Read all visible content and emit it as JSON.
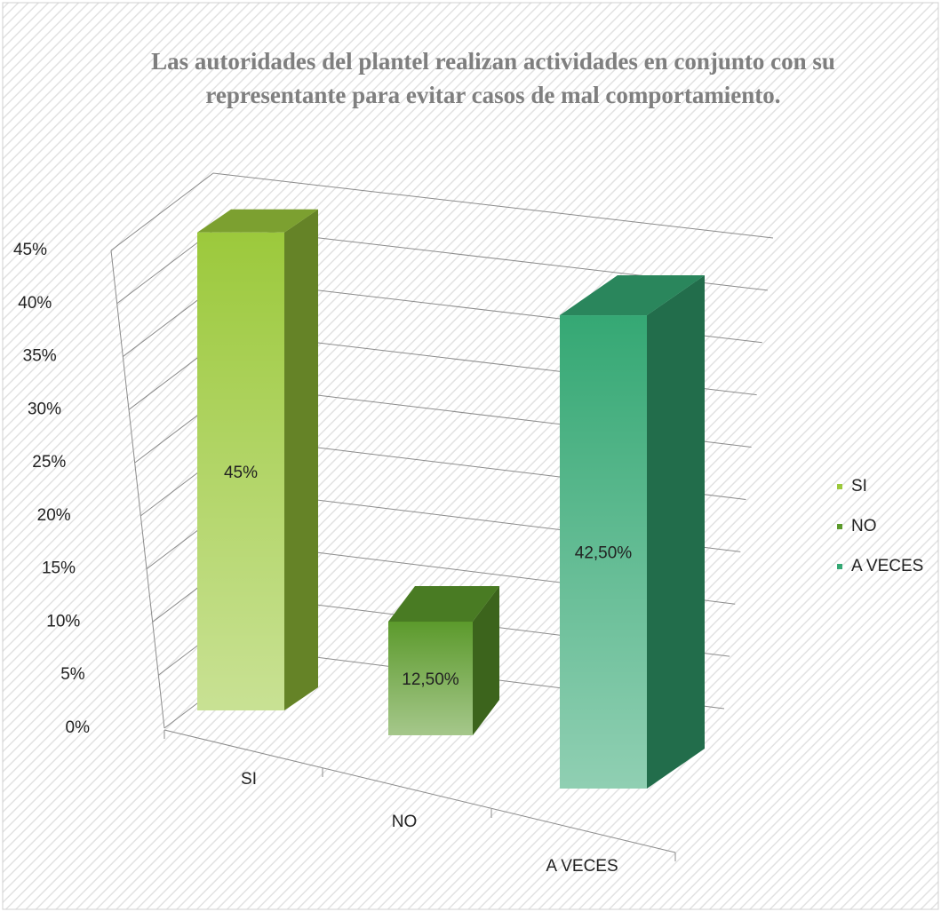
{
  "chart_data": {
    "type": "bar3d",
    "title": "Las autoridades del plantel realizan actividades en conjunto con su representante para evitar casos de mal comportamiento.",
    "categories": [
      "SI",
      "NO",
      "A VECES"
    ],
    "values": [
      45,
      12.5,
      42.5
    ],
    "value_labels": [
      "45%",
      "12,50%",
      "42,50%"
    ],
    "colors": [
      "#9cc93c",
      "#5c9a2c",
      "#35a874"
    ],
    "ylim": [
      0,
      45
    ],
    "yticks": [
      {
        "value": 0,
        "label": "0%"
      },
      {
        "value": 5,
        "label": "5%"
      },
      {
        "value": 10,
        "label": "10%"
      },
      {
        "value": 15,
        "label": "15%"
      },
      {
        "value": 20,
        "label": "20%"
      },
      {
        "value": 25,
        "label": "25%"
      },
      {
        "value": 30,
        "label": "30%"
      },
      {
        "value": 35,
        "label": "35%"
      },
      {
        "value": 40,
        "label": "40%"
      },
      {
        "value": 45,
        "label": "45%"
      }
    ],
    "grid": true,
    "legend": "right"
  }
}
